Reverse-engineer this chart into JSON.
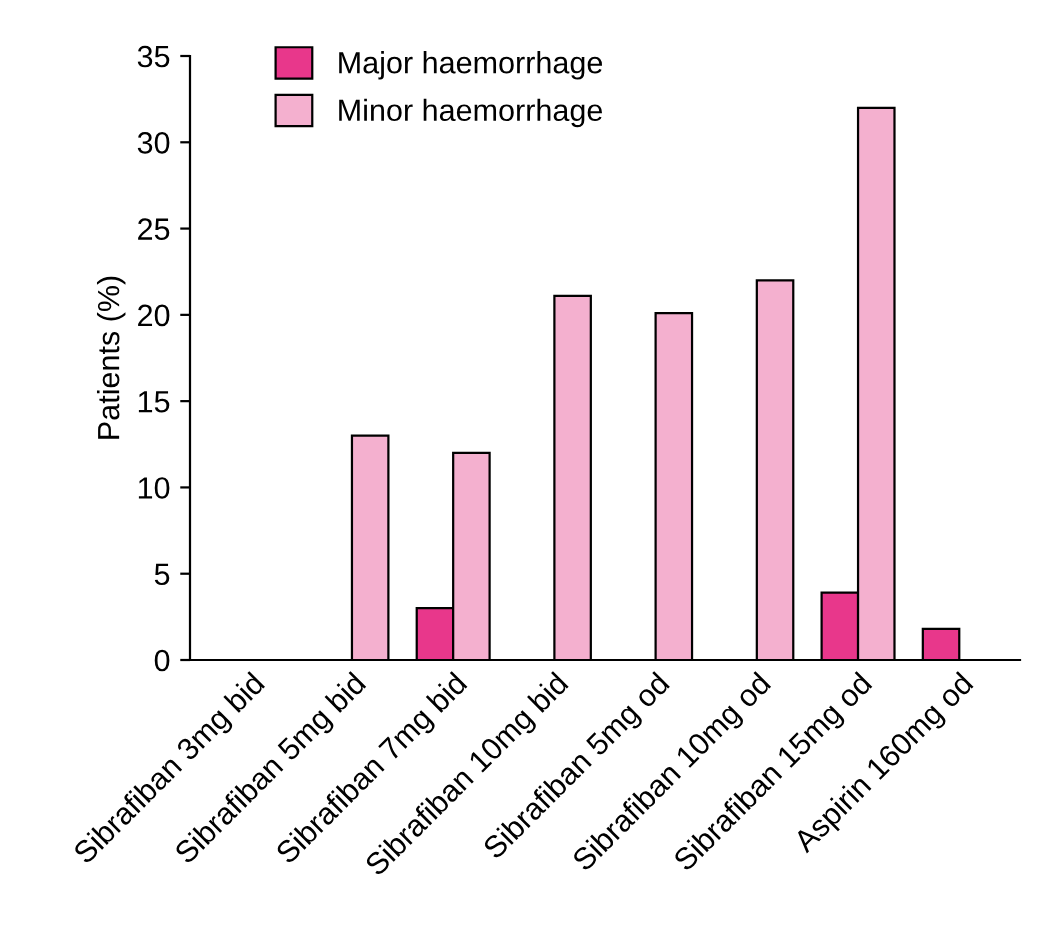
{
  "chart_data": {
    "type": "bar",
    "ylabel": "Patients (%)",
    "categories": [
      "Sibrafiban 3mg bid",
      "Sibrafiban 5mg bid",
      "Sibrafiban 7mg bid",
      "Sibrafiban 10mg bid",
      "Sibrafiban 5mg od",
      "Sibrafiban 10mg od",
      "Sibrafiban 15mg od",
      "Aspirin 160mg od"
    ],
    "series": [
      {
        "name": "Major haemorrhage",
        "color": "#e8378b",
        "values": [
          null,
          null,
          3,
          null,
          null,
          null,
          3.9,
          1.8
        ]
      },
      {
        "name": "Minor haemorrhage",
        "color": "#f4b0cf",
        "values": [
          null,
          13,
          12,
          21.1,
          20.1,
          22,
          32,
          null
        ]
      }
    ],
    "ylim": [
      0,
      35
    ],
    "yticks": [
      0,
      5,
      10,
      15,
      20,
      25,
      30,
      35
    ],
    "grid": false,
    "legend": "top left"
  }
}
